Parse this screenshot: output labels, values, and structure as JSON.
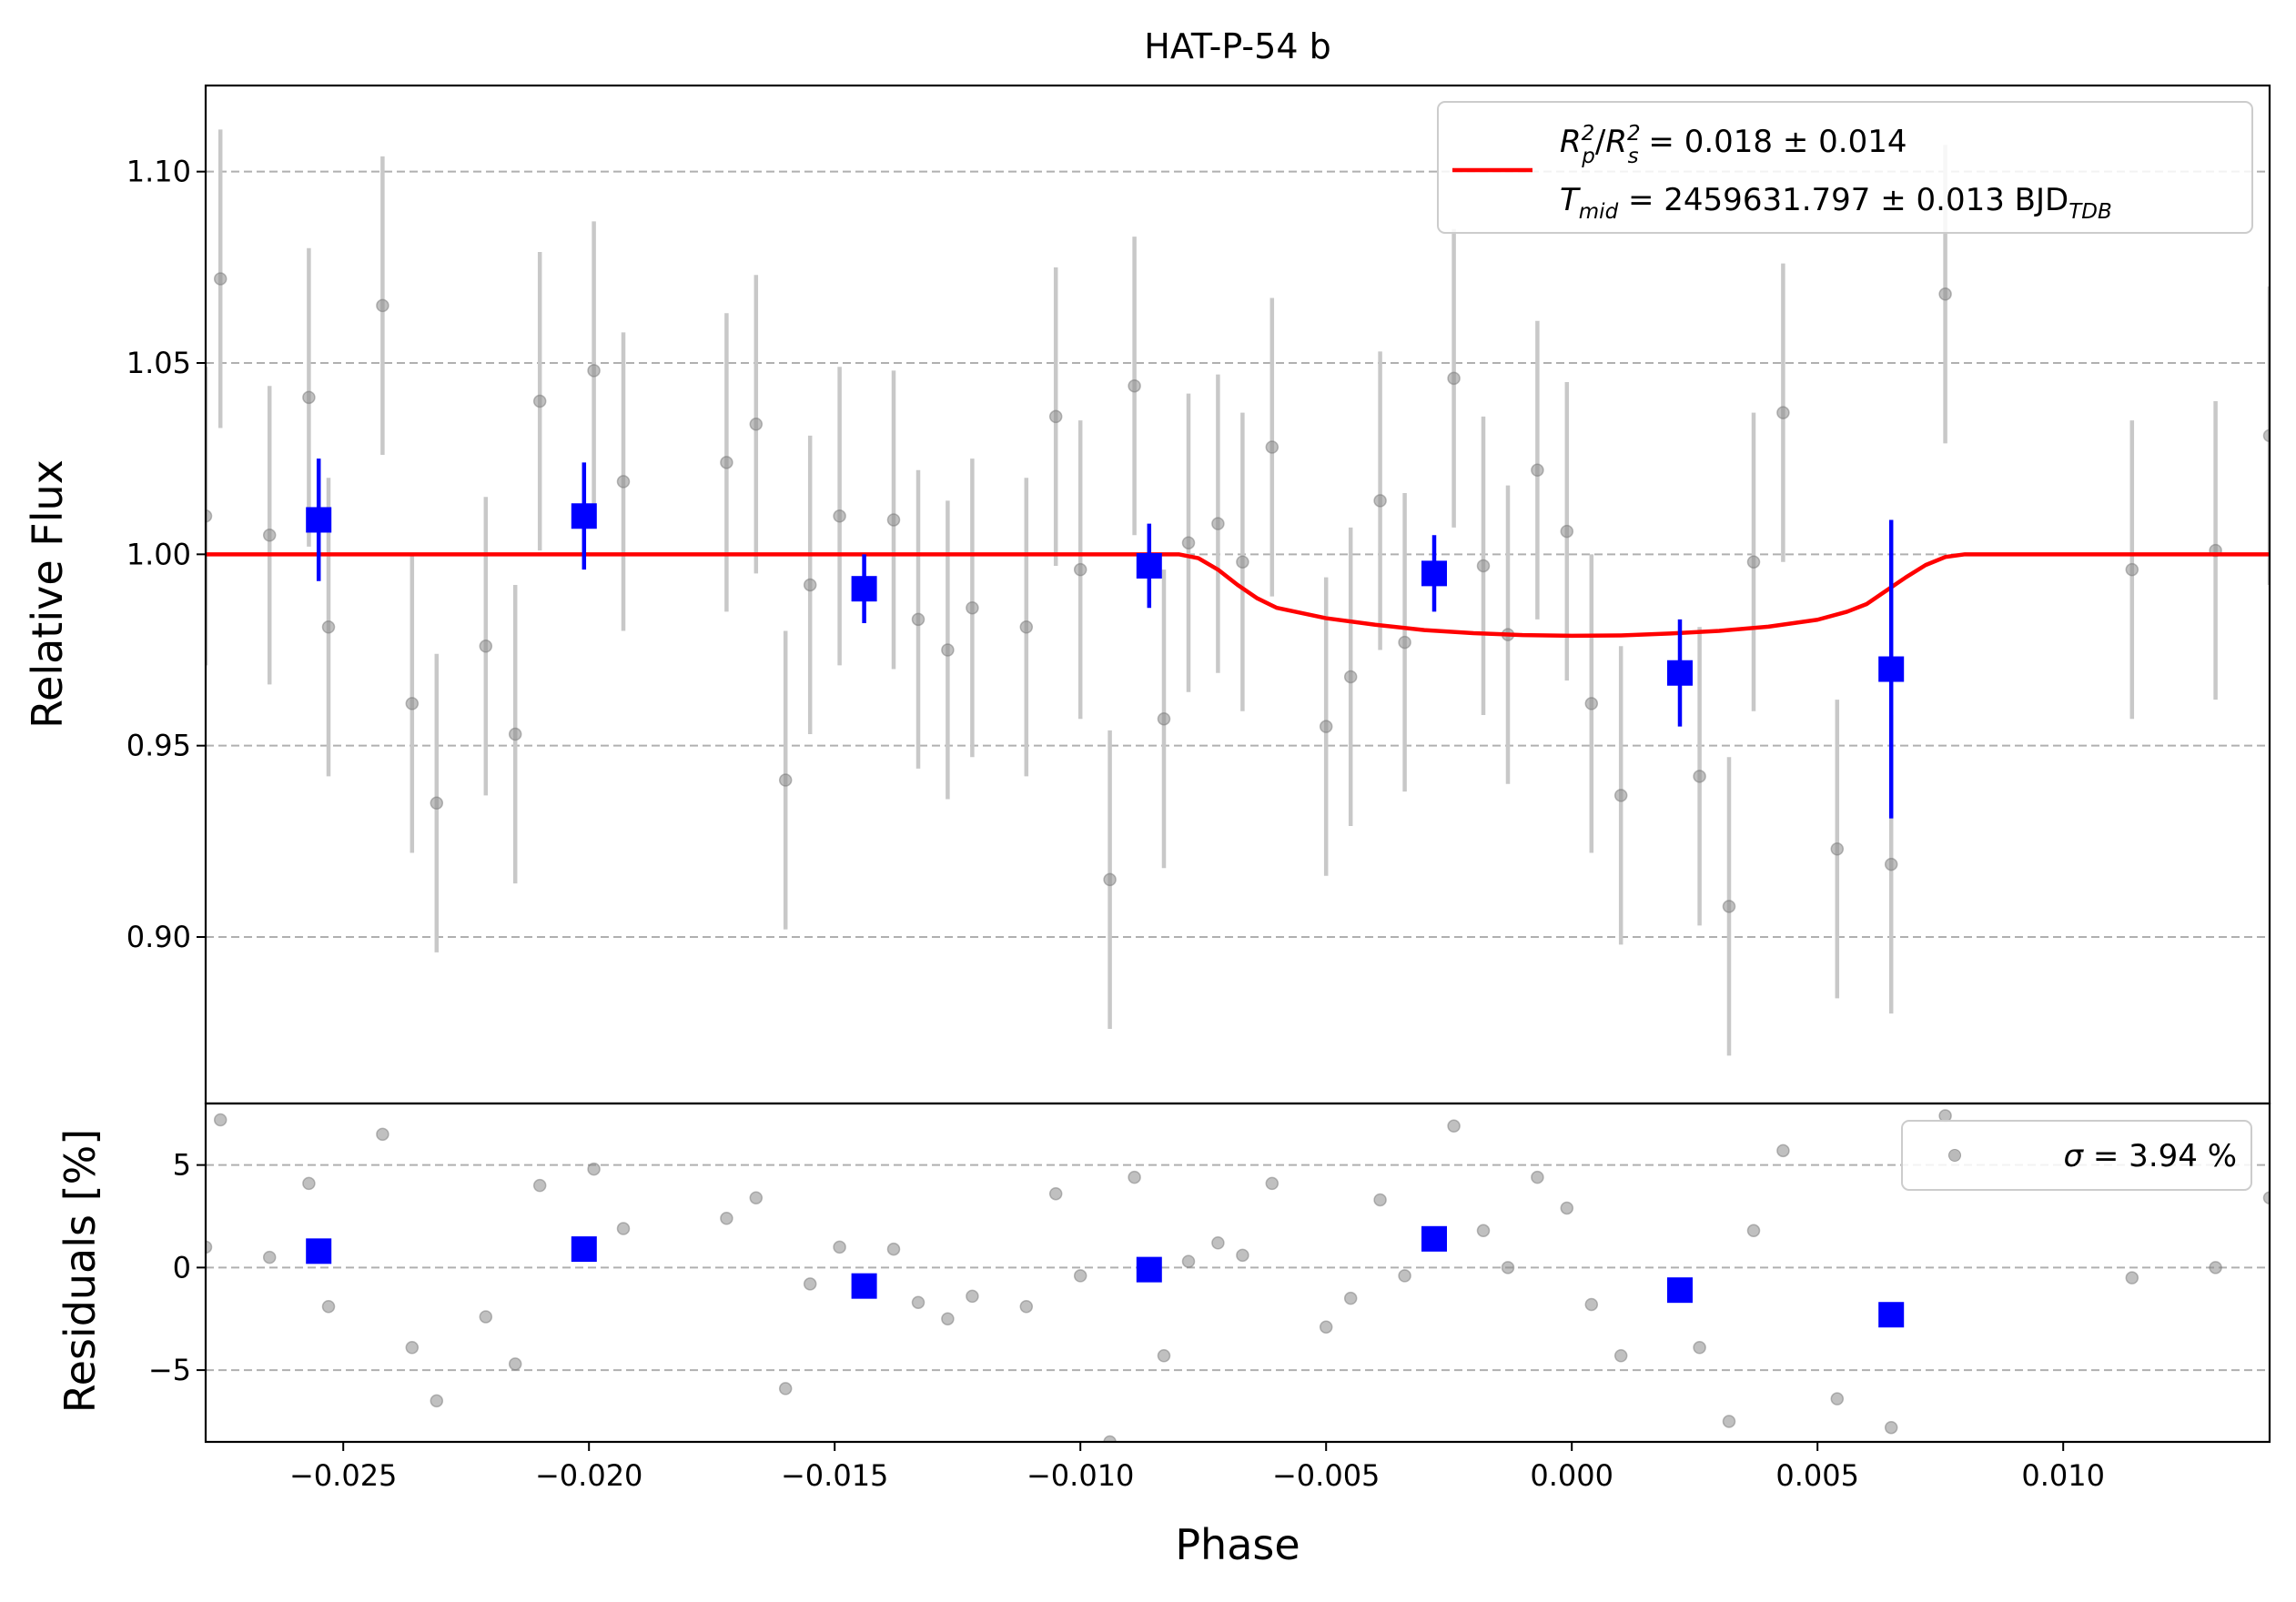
{
  "chart_data": {
    "type": "scatter",
    "title": "HAT-P-54 b",
    "xlabel": "Phase",
    "xlim": [
      -0.0278,
      0.0142
    ],
    "xticks": [
      -0.025,
      -0.02,
      -0.015,
      -0.01,
      -0.005,
      0.0,
      0.005,
      0.01
    ],
    "xtick_labels": [
      "−0.025",
      "−0.020",
      "−0.015",
      "−0.010",
      "−0.005",
      "0.000",
      "0.005",
      "0.010"
    ],
    "grid": "horizontal dashed",
    "top_panel": {
      "ylabel": "Relative Flux",
      "ylim": [
        0.8565,
        1.1225
      ],
      "yticks": [
        0.9,
        0.95,
        1.0,
        1.05,
        1.1
      ],
      "ytick_labels": [
        "0.90",
        "0.95",
        "1.00",
        "1.05",
        "1.10"
      ],
      "legend": {
        "placement": "top-right",
        "line1_lhs": "R",
        "line1_rhs": " = 0.018 ± 0.014",
        "line2_lhs": "T",
        "line2_sub": "mid",
        "line2_rhs": " = 2459631.797 ± 0.013 BJD",
        "line2_unit_sub": "TDB",
        "sub_p": "p",
        "sub_s": "s",
        "sup_2": "2"
      },
      "raw_data": {
        "color": "#8c8c8c",
        "error": 0.039,
        "points": [
          [
            -0.0278,
            1.01
          ],
          [
            -0.0275,
            1.072
          ],
          [
            -0.0265,
            1.005
          ],
          [
            -0.0257,
            1.041
          ],
          [
            -0.0253,
            0.981
          ],
          [
            -0.0242,
            1.065
          ],
          [
            -0.0236,
            0.961
          ],
          [
            -0.0231,
            0.935
          ],
          [
            -0.0221,
            0.976
          ],
          [
            -0.0215,
            0.953
          ],
          [
            -0.021,
            1.04
          ],
          [
            -0.0199,
            1.048
          ],
          [
            -0.0193,
            1.019
          ],
          [
            -0.0172,
            1.024
          ],
          [
            -0.0166,
            1.034
          ],
          [
            -0.016,
            0.941
          ],
          [
            -0.0155,
            0.992
          ],
          [
            -0.0149,
            1.01
          ],
          [
            -0.0138,
            1.009
          ],
          [
            -0.0133,
            0.983
          ],
          [
            -0.0127,
            0.975
          ],
          [
            -0.0122,
            0.986
          ],
          [
            -0.0111,
            0.981
          ],
          [
            -0.0105,
            1.036
          ],
          [
            -0.01,
            0.996
          ],
          [
            -0.0094,
            0.915
          ],
          [
            -0.0089,
            1.044
          ],
          [
            -0.0083,
            0.957
          ],
          [
            -0.0078,
            1.003
          ],
          [
            -0.0072,
            1.008
          ],
          [
            -0.0067,
            0.998
          ],
          [
            -0.0061,
            1.028
          ],
          [
            -0.005,
            0.955
          ],
          [
            -0.0045,
            0.968
          ],
          [
            -0.0039,
            1.014
          ],
          [
            -0.0034,
            0.977
          ],
          [
            -0.0024,
            1.046
          ],
          [
            -0.0018,
            0.997
          ],
          [
            -0.0013,
            0.979
          ],
          [
            -0.0007,
            1.022
          ],
          [
            -0.0001,
            1.006
          ],
          [
            0.0004,
            0.961
          ],
          [
            0.001,
            0.937
          ],
          [
            0.0026,
            0.942
          ],
          [
            0.0032,
            0.908
          ],
          [
            0.0037,
            0.998
          ],
          [
            0.0043,
            1.037
          ],
          [
            0.0054,
            0.923
          ],
          [
            0.0065,
            0.919
          ],
          [
            0.0076,
            1.068
          ],
          [
            0.0114,
            0.996
          ],
          [
            0.0131,
            1.001
          ],
          [
            0.0142,
            1.031
          ]
        ]
      },
      "binned_data": {
        "color": "#0000ff",
        "points": [
          {
            "x": -0.0255,
            "y": 1.009,
            "err": 0.016
          },
          {
            "x": -0.0201,
            "y": 1.01,
            "err": 0.014
          },
          {
            "x": -0.0144,
            "y": 0.991,
            "err": 0.009
          },
          {
            "x": -0.0086,
            "y": 0.997,
            "err": 0.011
          },
          {
            "x": -0.0028,
            "y": 0.995,
            "err": 0.01
          },
          {
            "x": 0.0022,
            "y": 0.969,
            "err": 0.014
          },
          {
            "x": 0.0065,
            "y": 0.97,
            "err": 0.039
          }
        ]
      },
      "model": {
        "color": "#ff0000",
        "points": [
          [
            -0.0278,
            1.0
          ],
          [
            -0.008,
            1.0
          ],
          [
            -0.0076,
            0.999
          ],
          [
            -0.0072,
            0.996
          ],
          [
            -0.0068,
            0.992
          ],
          [
            -0.0064,
            0.9885
          ],
          [
            -0.006,
            0.986
          ],
          [
            -0.005,
            0.9833
          ],
          [
            -0.004,
            0.9816
          ],
          [
            -0.003,
            0.9802
          ],
          [
            -0.002,
            0.9794
          ],
          [
            -0.001,
            0.9789
          ],
          [
            0.0,
            0.9787
          ],
          [
            0.001,
            0.9788
          ],
          [
            0.002,
            0.9793
          ],
          [
            0.003,
            0.98
          ],
          [
            0.004,
            0.9811
          ],
          [
            0.005,
            0.9829
          ],
          [
            0.0056,
            0.985
          ],
          [
            0.006,
            0.987
          ],
          [
            0.0064,
            0.9905
          ],
          [
            0.0068,
            0.994
          ],
          [
            0.0072,
            0.9972
          ],
          [
            0.0076,
            0.9993
          ],
          [
            0.008,
            1.0
          ],
          [
            0.0142,
            1.0
          ]
        ]
      }
    },
    "bottom_panel": {
      "ylabel": "Residuals [%]",
      "ylim": [
        -8.5,
        8.0
      ],
      "yticks": [
        -5,
        0,
        5
      ],
      "ytick_labels": [
        "−5",
        "0",
        "5"
      ],
      "legend": {
        "placement": "top-right",
        "sigma_symbol": "σ",
        "text": " = 3.94 %"
      },
      "raw_residuals": [
        [
          -0.0278,
          1.0
        ],
        [
          -0.0275,
          7.2
        ],
        [
          -0.0265,
          0.5
        ],
        [
          -0.0257,
          4.1
        ],
        [
          -0.0253,
          -1.9
        ],
        [
          -0.0242,
          6.5
        ],
        [
          -0.0236,
          -3.9
        ],
        [
          -0.0231,
          -6.5
        ],
        [
          -0.0221,
          -2.4
        ],
        [
          -0.0215,
          -4.7
        ],
        [
          -0.021,
          4.0
        ],
        [
          -0.0199,
          4.8
        ],
        [
          -0.0193,
          1.9
        ],
        [
          -0.0172,
          2.4
        ],
        [
          -0.0166,
          3.4
        ],
        [
          -0.016,
          -5.9
        ],
        [
          -0.0155,
          -0.8
        ],
        [
          -0.0149,
          1.0
        ],
        [
          -0.0138,
          0.9
        ],
        [
          -0.0133,
          -1.7
        ],
        [
          -0.0127,
          -2.5
        ],
        [
          -0.0122,
          -1.4
        ],
        [
          -0.0111,
          -1.9
        ],
        [
          -0.0105,
          3.6
        ],
        [
          -0.01,
          -0.4
        ],
        [
          -0.0094,
          -8.5
        ],
        [
          -0.0089,
          4.4
        ],
        [
          -0.0083,
          -4.3
        ],
        [
          -0.0078,
          0.3
        ],
        [
          -0.0072,
          1.2
        ],
        [
          -0.0067,
          0.6
        ],
        [
          -0.0061,
          4.1
        ],
        [
          -0.005,
          -2.9
        ],
        [
          -0.0045,
          -1.5
        ],
        [
          -0.0039,
          3.3
        ],
        [
          -0.0034,
          -0.4
        ],
        [
          -0.0024,
          6.9
        ],
        [
          -0.0018,
          1.8
        ],
        [
          -0.0013,
          0.0
        ],
        [
          -0.0007,
          4.4
        ],
        [
          -0.0001,
          2.9
        ],
        [
          0.0004,
          -1.8
        ],
        [
          0.001,
          -4.3
        ],
        [
          0.0026,
          -3.9
        ],
        [
          0.0032,
          -7.5
        ],
        [
          0.0037,
          1.8
        ],
        [
          0.0043,
          5.7
        ],
        [
          0.0054,
          -6.4
        ],
        [
          0.0065,
          -7.8
        ],
        [
          0.0076,
          7.4
        ],
        [
          0.0114,
          -0.5
        ],
        [
          0.0131,
          0.0
        ],
        [
          0.0142,
          3.4
        ]
      ],
      "binned_residuals": [
        [
          -0.0255,
          0.8
        ],
        [
          -0.0201,
          0.9
        ],
        [
          -0.0144,
          -0.9
        ],
        [
          -0.0086,
          -0.1
        ],
        [
          -0.0028,
          1.4
        ],
        [
          0.0022,
          -1.1
        ],
        [
          0.0065,
          -2.3
        ]
      ]
    }
  }
}
